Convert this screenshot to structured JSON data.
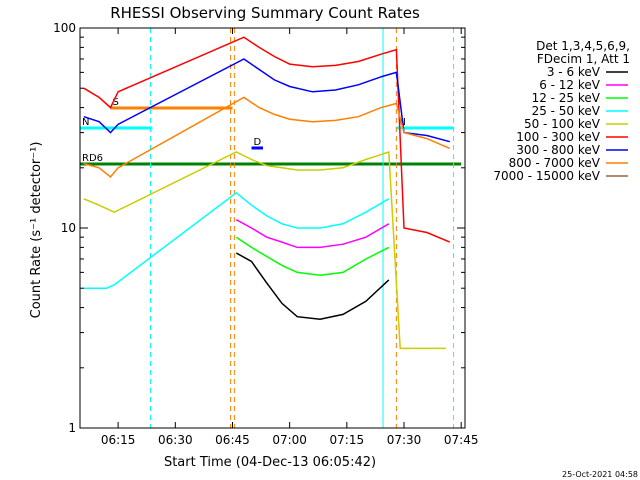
{
  "chart_data": {
    "type": "line",
    "title": "RHESSI Observing Summary Count Rates",
    "xlabel": "Start Time (04-Dec-13 06:05:42)",
    "ylabel": "Count Rate (s⁻¹ detector⁻¹)",
    "y_scale": "log",
    "ylim": [
      1,
      100
    ],
    "xlim": [
      "06:05:42",
      "07:46:00"
    ],
    "x_ticks": [
      "06:15",
      "06:30",
      "06:45",
      "07:00",
      "07:15",
      "07:30",
      "07:45"
    ],
    "y_ticks": [
      "1",
      "10",
      "100"
    ],
    "legend_position": "right",
    "legend_header": [
      "Det 1,3,4,5,6,9,",
      "FDecim 1, Att 1"
    ],
    "footer": "25-Oct-2021 04:58",
    "flags": [
      {
        "label": "S",
        "color": "#ff7f00",
        "start": "06:13",
        "end": "06:45",
        "level": 0.8
      },
      {
        "label": "N",
        "color": "#00ffff",
        "start": "06:05",
        "end": "06:24",
        "level": 0.75
      },
      {
        "label": "RD6",
        "color": "#008000",
        "start": "06:05",
        "end": "07:45",
        "level": 0.66
      },
      {
        "label": "D",
        "color": "#0000ff",
        "start": "06:50",
        "end": "06:53",
        "level": 0.7
      },
      {
        "label": "N",
        "color": "#00ffff",
        "start": "07:28",
        "end": "07:43",
        "level": 0.75
      }
    ],
    "series": [
      {
        "name": "3 - 6 keV",
        "color": "#000000",
        "points": [
          [
            "06:46",
            7.5
          ],
          [
            "06:50",
            6.8
          ],
          [
            "06:54",
            5.3
          ],
          [
            "06:58",
            4.2
          ],
          [
            "07:02",
            3.6
          ],
          [
            "07:08",
            3.5
          ],
          [
            "07:14",
            3.7
          ],
          [
            "07:20",
            4.3
          ],
          [
            "07:26",
            5.5
          ]
        ]
      },
      {
        "name": "6 - 12 keV",
        "color": "#ff00ff",
        "points": [
          [
            "06:46",
            11
          ],
          [
            "06:50",
            10
          ],
          [
            "06:54",
            9
          ],
          [
            "06:58",
            8.5
          ],
          [
            "07:02",
            8
          ],
          [
            "07:08",
            8
          ],
          [
            "07:14",
            8.3
          ],
          [
            "07:20",
            9
          ],
          [
            "07:26",
            10.5
          ]
        ]
      },
      {
        "name": "12 - 25 keV",
        "color": "#00ff00",
        "points": [
          [
            "06:46",
            9
          ],
          [
            "06:50",
            8
          ],
          [
            "06:54",
            7.2
          ],
          [
            "06:58",
            6.5
          ],
          [
            "07:02",
            6
          ],
          [
            "07:08",
            5.8
          ],
          [
            "07:14",
            6
          ],
          [
            "07:20",
            7
          ],
          [
            "07:26",
            8
          ]
        ]
      },
      {
        "name": "25 - 50 keV",
        "color": "#00ffff",
        "points": [
          [
            "06:06",
            5
          ],
          [
            "06:12",
            5
          ],
          [
            "06:14",
            5.2
          ],
          [
            "06:46",
            15
          ],
          [
            "06:50",
            13
          ],
          [
            "06:54",
            11.5
          ],
          [
            "06:58",
            10.5
          ],
          [
            "07:02",
            10
          ],
          [
            "07:08",
            10
          ],
          [
            "07:14",
            10.5
          ],
          [
            "07:20",
            12
          ],
          [
            "07:26",
            14
          ]
        ]
      },
      {
        "name": "50 - 100 keV",
        "color": "#cccc00",
        "points": [
          [
            "06:06",
            14
          ],
          [
            "06:10",
            13
          ],
          [
            "06:14",
            12
          ],
          [
            "06:46",
            24
          ],
          [
            "06:50",
            22
          ],
          [
            "06:54",
            20.5
          ],
          [
            "06:58",
            20
          ],
          [
            "07:02",
            19.5
          ],
          [
            "07:08",
            19.5
          ],
          [
            "07:14",
            20
          ],
          [
            "07:20",
            22
          ],
          [
            "07:26",
            24
          ],
          [
            "07:29",
            2.5
          ],
          [
            "07:41",
            2.5
          ]
        ]
      },
      {
        "name": "100 - 300 keV",
        "color": "#ff0000",
        "points": [
          [
            "06:06",
            50
          ],
          [
            "06:10",
            45
          ],
          [
            "06:13",
            40
          ],
          [
            "06:15",
            48
          ],
          [
            "06:48",
            90
          ],
          [
            "06:52",
            80
          ],
          [
            "06:56",
            72
          ],
          [
            "07:00",
            66
          ],
          [
            "07:06",
            64
          ],
          [
            "07:12",
            65
          ],
          [
            "07:18",
            68
          ],
          [
            "07:24",
            74
          ],
          [
            "07:28",
            78
          ],
          [
            "07:30",
            10
          ],
          [
            "07:36",
            9.5
          ],
          [
            "07:42",
            8.5
          ]
        ]
      },
      {
        "name": "300 - 800 keV",
        "color": "#0000ff",
        "points": [
          [
            "06:06",
            36
          ],
          [
            "06:10",
            34
          ],
          [
            "06:13",
            30
          ],
          [
            "06:15",
            33
          ],
          [
            "06:48",
            70
          ],
          [
            "06:52",
            62
          ],
          [
            "06:56",
            55
          ],
          [
            "07:00",
            51
          ],
          [
            "07:06",
            48
          ],
          [
            "07:12",
            49
          ],
          [
            "07:18",
            52
          ],
          [
            "07:24",
            57
          ],
          [
            "07:28",
            60
          ],
          [
            "07:30",
            30
          ],
          [
            "07:36",
            29
          ],
          [
            "07:42",
            27
          ]
        ]
      },
      {
        "name": "800 - 7000 keV",
        "color": "#ff7f00",
        "points": [
          [
            "06:06",
            21
          ],
          [
            "06:10",
            20
          ],
          [
            "06:13",
            18
          ],
          [
            "06:15",
            20
          ],
          [
            "06:48",
            45
          ],
          [
            "06:52",
            40
          ],
          [
            "06:56",
            37
          ],
          [
            "07:00",
            35
          ],
          [
            "07:06",
            34
          ],
          [
            "07:12",
            34.5
          ],
          [
            "07:18",
            36
          ],
          [
            "07:24",
            40
          ],
          [
            "07:28",
            42
          ],
          [
            "07:30",
            30
          ],
          [
            "07:36",
            28
          ],
          [
            "07:42",
            25
          ]
        ]
      },
      {
        "name": "7000 - 15000 keV",
        "color": "#996633",
        "points": []
      }
    ],
    "vertical_lines": [
      {
        "time": "06:23.5",
        "color": "#00ffff",
        "style": "dashed"
      },
      {
        "time": "06:44.5",
        "color": "#ff7f00",
        "style": "dashed"
      },
      {
        "time": "06:45.5",
        "color": "#ff7f00",
        "style": "dashed"
      },
      {
        "time": "07:24.5",
        "color": "#00ffff",
        "style": "solid"
      },
      {
        "time": "07:28",
        "color": "#ff7f00",
        "style": "dashed"
      },
      {
        "time": "07:43",
        "color": "#00ffff",
        "style": "dashed"
      }
    ]
  }
}
